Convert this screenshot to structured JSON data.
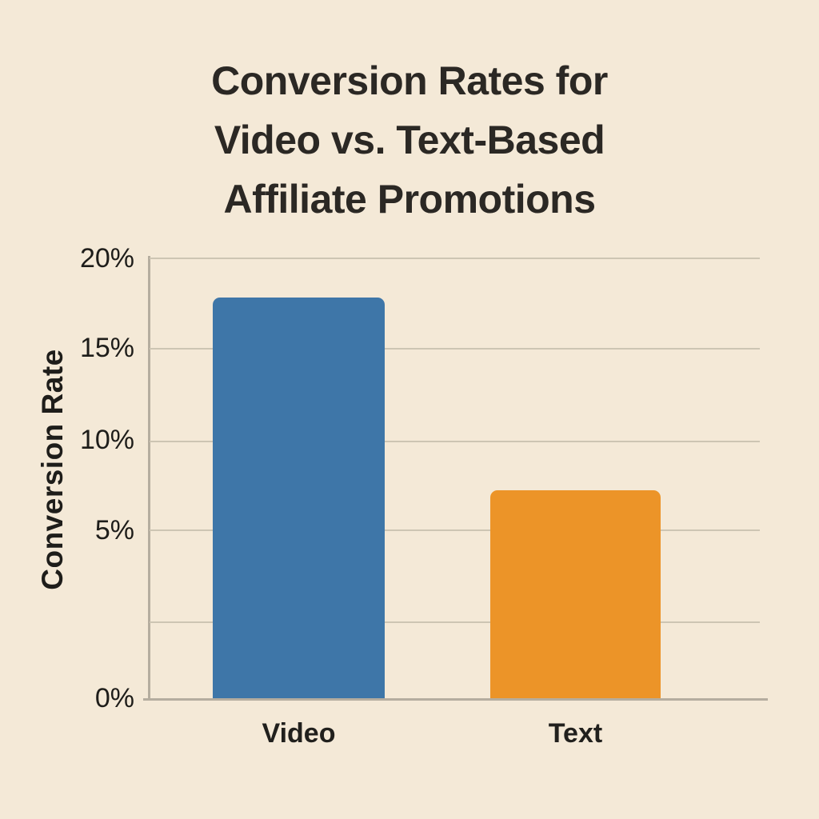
{
  "chart_data": {
    "type": "bar",
    "title": "Conversion Rates for Video vs. Text-Based Affiliate Promotions",
    "title_lines": [
      "Conversion Rates for",
      "Video vs. Text-Based",
      "Affiliate Promotions"
    ],
    "categories": [
      "Video",
      "Text"
    ],
    "values": [
      17.8,
      7.2
    ],
    "series": [
      {
        "name": "Conversion Rate",
        "values": [
          17.8,
          7.2
        ]
      }
    ],
    "xlabel": "",
    "ylabel": "Conversion Rate",
    "ylim": [
      0,
      20
    ],
    "yticks": [
      {
        "label": "20%",
        "value": 20
      },
      {
        "label": "15%",
        "value": 15
      },
      {
        "label": "10%",
        "value": 10
      },
      {
        "label": "5%",
        "value": 5
      },
      {
        "label": "0%",
        "value": 0
      }
    ],
    "grid": true,
    "has_unlabeled_gridline_below_5": true,
    "legend": false,
    "bar_colors": [
      "#3e76a8",
      "#ec9428"
    ]
  },
  "colors": {
    "background": "#f4e9d7",
    "title_text": "#2b2824",
    "axis_text": "#1e1d1a",
    "gridline": "#cdc5b3",
    "axis_line": "#b5ad9f",
    "bar_video": "#3e76a8",
    "bar_text": "#ec9428"
  }
}
